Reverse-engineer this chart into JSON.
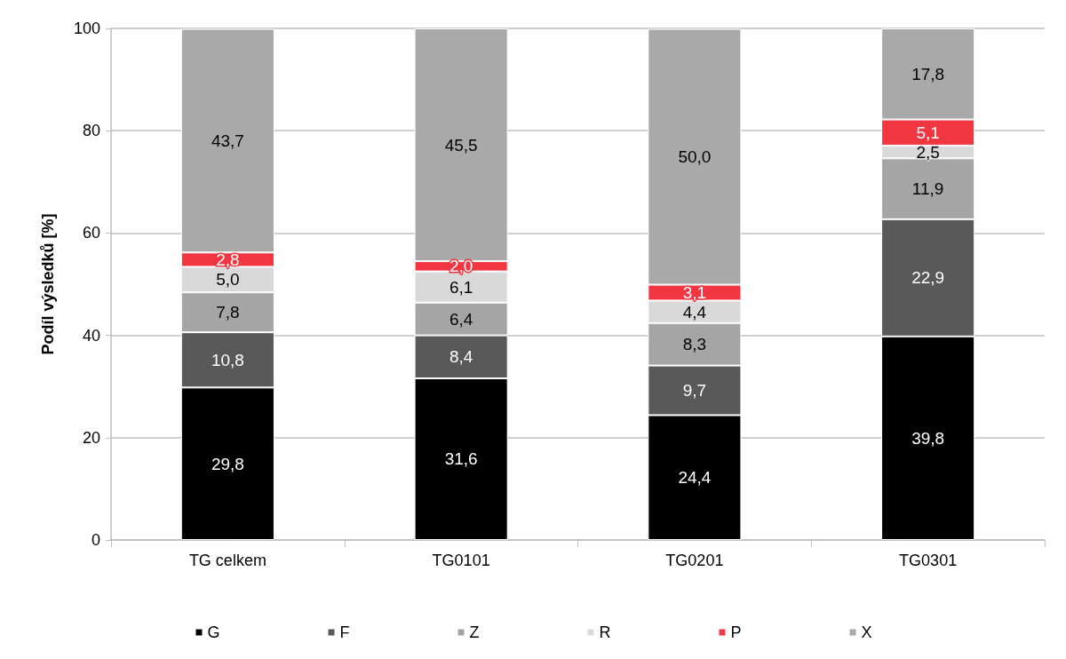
{
  "chart_data": {
    "type": "bar",
    "stacked": true,
    "ylabel": "Podíl výsledků [%]",
    "categories": [
      "TG celkem",
      "TG0101",
      "TG0201",
      "TG0301"
    ],
    "series": [
      {
        "name": "G",
        "color": "#000000",
        "values": [
          29.8,
          31.6,
          24.4,
          39.8
        ],
        "value_labels": [
          "29,8",
          "31,6",
          "24,4",
          "39,8"
        ]
      },
      {
        "name": "F",
        "color": "#595959",
        "values": [
          10.8,
          8.4,
          9.7,
          22.9
        ],
        "value_labels": [
          "10,8",
          "8,4",
          "9,7",
          "22,9"
        ]
      },
      {
        "name": "Z",
        "color": "#a5a5a5",
        "values": [
          7.8,
          6.4,
          8.3,
          11.9
        ],
        "value_labels": [
          "7,8",
          "6,4",
          "8,3",
          "11,9"
        ]
      },
      {
        "name": "R",
        "color": "#d9d9d9",
        "values": [
          5.0,
          6.1,
          4.4,
          2.5
        ],
        "value_labels": [
          "5,0",
          "6,1",
          "4,4",
          "2,5"
        ]
      },
      {
        "name": "P",
        "color": "#f23641",
        "values": [
          2.8,
          2.0,
          3.1,
          5.1
        ],
        "value_labels": [
          "2,8",
          "2,0",
          "3,1",
          "5,1"
        ]
      },
      {
        "name": "X",
        "color": "#a9a9a9",
        "values": [
          43.7,
          45.5,
          50.0,
          17.8
        ],
        "value_labels": [
          "43,7",
          "45,5",
          "50,0",
          "17,8"
        ]
      }
    ],
    "ylim": [
      0,
      100
    ],
    "yticks": [
      0,
      20,
      40,
      60,
      80,
      100
    ],
    "grid": "y",
    "legend": "bottom"
  }
}
